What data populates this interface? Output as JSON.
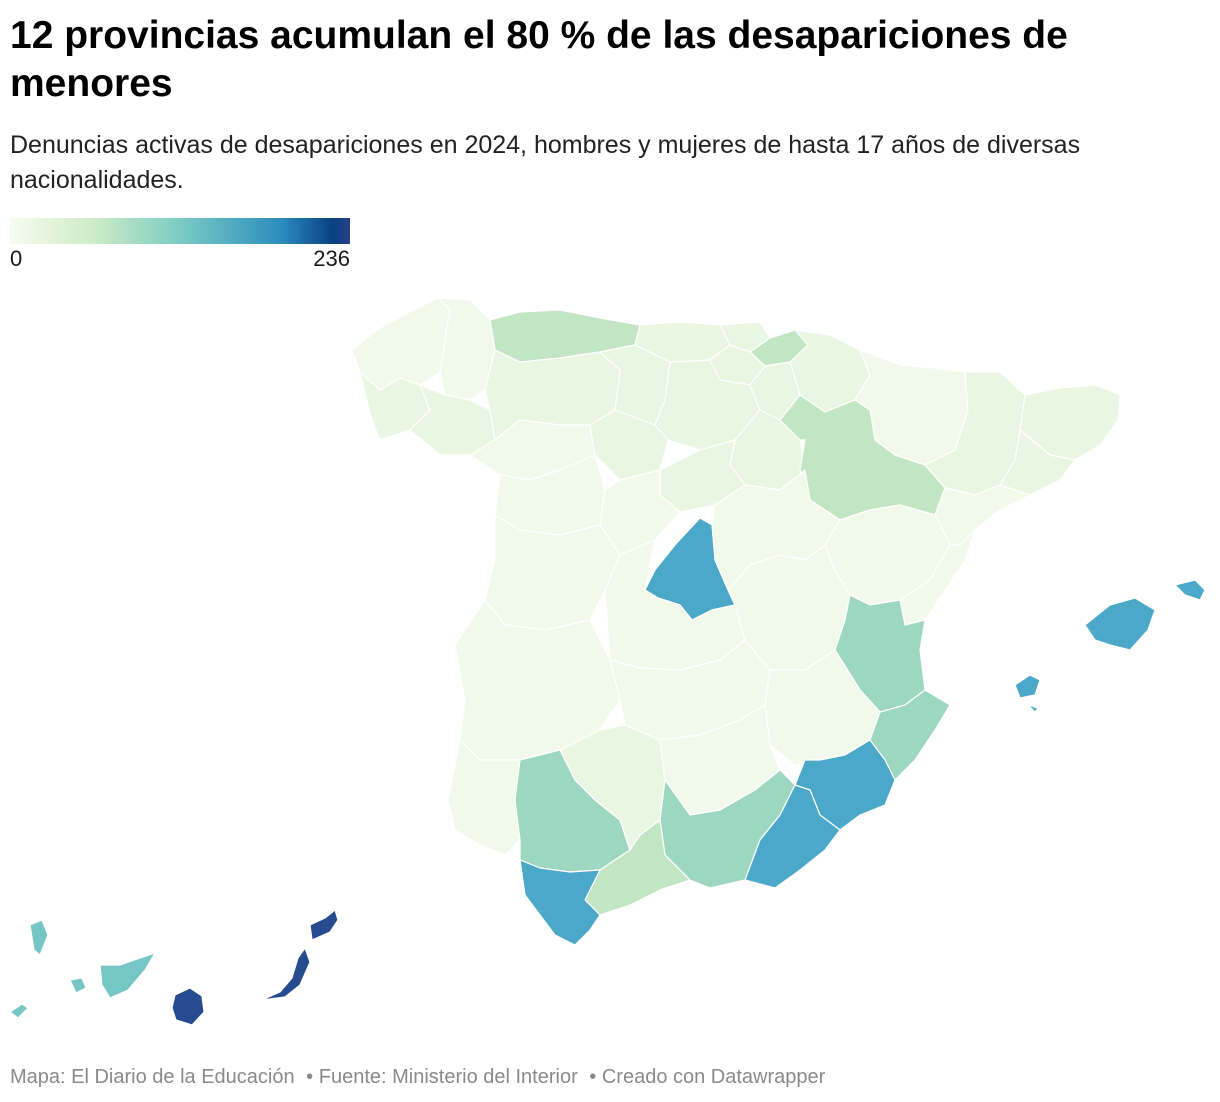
{
  "title": "12 provincias acumulan el 80 % de las desapariciones de menores",
  "subtitle": "Denuncias activas de desapariciones en 2024, hombres y mujeres de hasta 17 años de diversas nacionalidades.",
  "legend": {
    "min": "0",
    "max": "236"
  },
  "colors": {
    "very_low": "#e9f6e1",
    "lightest": "#f1f9ea",
    "low": "#c2e6c4",
    "mid": "#9dd7c1",
    "teal": "#75c6c4",
    "high": "#4ba8c8",
    "top": "#264b8f"
  },
  "footer": {
    "map_credit": "Mapa: El Diario de la Educación",
    "source": "• Fuente: Ministerio del Interior",
    "created": "• Creado con Datawrapper"
  }
}
